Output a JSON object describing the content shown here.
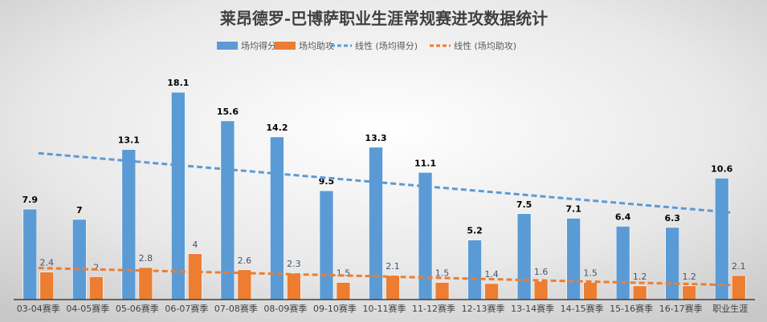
{
  "chart_data": {
    "type": "bar",
    "title": "莱昂德罗-巴博萨职业生涯常规赛进攻数据统计",
    "categories": [
      "03-04赛季",
      "04-05赛季",
      "05-06赛季",
      "06-07赛季",
      "07-08赛季",
      "08-09赛季",
      "09-10赛季",
      "10-11赛季",
      "11-12赛季",
      "12-13赛季",
      "13-14赛季",
      "14-15赛季",
      "15-16赛季",
      "16-17赛季",
      "职业生涯"
    ],
    "series": [
      {
        "name": "场均得分",
        "values": [
          7.9,
          7,
          13.1,
          18.1,
          15.6,
          14.2,
          9.5,
          13.3,
          11.1,
          5.2,
          7.5,
          7.1,
          6.4,
          6.3,
          10.6
        ],
        "color": "#5b9bd5",
        "label_color": "#000000"
      },
      {
        "name": "场均助攻",
        "values": [
          2.4,
          2,
          2.8,
          4,
          2.6,
          2.3,
          1.5,
          2.1,
          1.5,
          1.4,
          1.6,
          1.5,
          1.2,
          1.2,
          2.1
        ],
        "color": "#ed7d31",
        "label_color": "#44546a"
      }
    ],
    "trendlines": [
      {
        "name": "线性 (场均得分)",
        "of_series": 0,
        "type": "linear",
        "style": "dashed",
        "color": "#5b9bd5"
      },
      {
        "name": "线性 (场均助攻)",
        "of_series": 1,
        "type": "linear",
        "style": "dashed",
        "color": "#ed7d31"
      }
    ],
    "ylim": [
      0,
      20
    ],
    "grid": false,
    "y_axis_visible": false,
    "legend": "top",
    "data_labels": true
  }
}
